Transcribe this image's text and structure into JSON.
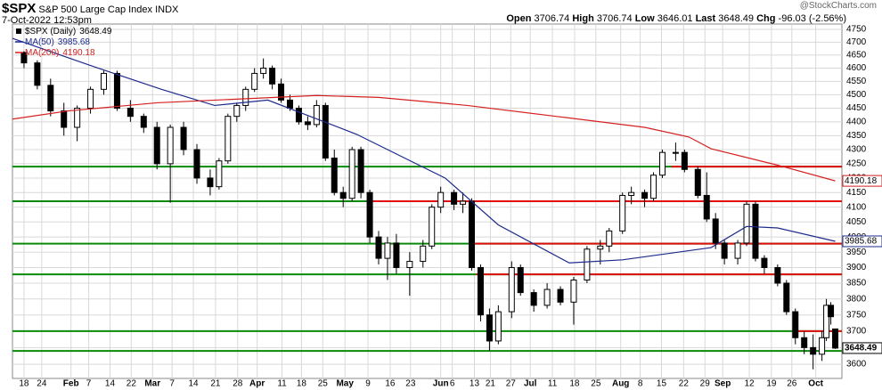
{
  "header": {
    "ticker": "$SPX",
    "name": "S&P 500 Large Cap Index",
    "exchange": "INDX",
    "date": "7-Oct-2022 12:53pm",
    "watermark": "@StockCharts.com",
    "stats": [
      {
        "label": "Open",
        "value": 3706.74
      },
      {
        "label": "High",
        "value": 3706.74
      },
      {
        "label": "Low",
        "value": 3646.01
      },
      {
        "label": "Last",
        "value": 3648.49
      },
      {
        "label": "Chg",
        "value": -96.03
      }
    ],
    "chg_pct": "(-2.56%)"
  },
  "chart_data": {
    "type": "candlestick",
    "log_scale": true,
    "grid": true,
    "name": "$SPX (Daily)",
    "last": 3648.49,
    "x": [
      0,
      3,
      6,
      9,
      12,
      15,
      18,
      21,
      24,
      27,
      30,
      33,
      36,
      39,
      42,
      44,
      46,
      48,
      50,
      52,
      54,
      56,
      58,
      60,
      62,
      64,
      66,
      68,
      70,
      72,
      74,
      76,
      78,
      80,
      82,
      84,
      87,
      90,
      92,
      94,
      97,
      99,
      101,
      103,
      105,
      107,
      110,
      112,
      115,
      118,
      121,
      124,
      127,
      130,
      132,
      135,
      137,
      140,
      142,
      144,
      147,
      149,
      152,
      154,
      156,
      158,
      161,
      163,
      165,
      167,
      170,
      172,
      174,
      176,
      178,
      180,
      181,
      182,
      183
    ],
    "open": [
      4660,
      4620,
      4535,
      4440,
      4380,
      4450,
      4520,
      4580,
      4450,
      4420,
      4380,
      4250,
      4380,
      4300,
      4200,
      4170,
      4260,
      4420,
      4460,
      4520,
      4580,
      4600,
      4540,
      4480,
      4450,
      4400,
      4390,
      4460,
      4270,
      4150,
      4130,
      4300,
      4150,
      4000,
      3930,
      3980,
      3900,
      3920,
      3970,
      4100,
      4150,
      4110,
      4120,
      3900,
      3750,
      3670,
      3760,
      3900,
      3820,
      3780,
      3830,
      3790,
      3860,
      3960,
      3970,
      4020,
      4140,
      4150,
      4130,
      4210,
      4290,
      4290,
      4230,
      4140,
      4060,
      3980,
      3930,
      3980,
      4110,
      3930,
      3900,
      3850,
      3760,
      3680,
      3650,
      3630,
      3680,
      3780,
      3706.74
    ],
    "high": [
      4665,
      4630,
      4560,
      4470,
      4460,
      4530,
      4590,
      4590,
      4480,
      4430,
      4400,
      4390,
      4400,
      4320,
      4230,
      4270,
      4430,
      4470,
      4530,
      4600,
      4637,
      4610,
      4560,
      4500,
      4460,
      4420,
      4480,
      4470,
      4300,
      4170,
      4310,
      4310,
      4160,
      4020,
      4000,
      4010,
      3950,
      3990,
      4110,
      4170,
      4160,
      4150,
      4130,
      3910,
      3770,
      3780,
      3920,
      3910,
      3830,
      3850,
      3840,
      3870,
      3970,
      3990,
      4030,
      4150,
      4170,
      4160,
      4220,
      4300,
      4325,
      4300,
      4240,
      4220,
      4080,
      3990,
      3990,
      4120,
      4120,
      3940,
      3910,
      3860,
      3770,
      3700,
      3690,
      3700,
      3800,
      3790,
      3706.74
    ],
    "low": [
      4600,
      4520,
      4420,
      4350,
      4330,
      4430,
      4500,
      4440,
      4400,
      4360,
      4230,
      4115,
      4280,
      4180,
      4140,
      4160,
      4250,
      4400,
      4440,
      4510,
      4560,
      4520,
      4470,
      4440,
      4390,
      4370,
      4380,
      4260,
      4140,
      4100,
      4120,
      4130,
      3980,
      3910,
      3860,
      3880,
      3810,
      3900,
      3960,
      4080,
      4090,
      4080,
      3890,
      3730,
      3640,
      3660,
      3740,
      3810,
      3760,
      3770,
      3780,
      3720,
      3850,
      3910,
      3950,
      4010,
      4110,
      4100,
      4120,
      4200,
      4260,
      4220,
      4130,
      4050,
      3960,
      3910,
      3910,
      3970,
      3920,
      3880,
      3840,
      3750,
      3660,
      3630,
      3585,
      3610,
      3670,
      3720,
      3646.01
    ],
    "close": [
      4620,
      4535,
      4440,
      4380,
      4450,
      4520,
      4580,
      4450,
      4420,
      4380,
      4250,
      4380,
      4300,
      4200,
      4170,
      4260,
      4420,
      4460,
      4520,
      4580,
      4600,
      4540,
      4480,
      4450,
      4400,
      4390,
      4460,
      4270,
      4150,
      4130,
      4300,
      4150,
      4000,
      3930,
      3980,
      3900,
      3920,
      3970,
      4100,
      4150,
      4110,
      4120,
      3900,
      3750,
      3670,
      3760,
      3900,
      3820,
      3780,
      3830,
      3790,
      3860,
      3960,
      3970,
      4020,
      4140,
      4150,
      4130,
      4210,
      4290,
      4290,
      4230,
      4140,
      4060,
      3980,
      3930,
      3980,
      4110,
      3930,
      3900,
      3850,
      3760,
      3680,
      3650,
      3630,
      3680,
      3780,
      3744.52,
      3648.49
    ],
    "series": [
      {
        "name": "MA(50)",
        "color": "#1c2a8c",
        "last": 3985.68,
        "x": [
          -2.6,
          15,
          31,
          43,
          55,
          75,
          95,
          107,
          123,
          135,
          155,
          163,
          170,
          183
        ],
        "values": [
          4715,
          4610,
          4520,
          4460,
          4480,
          4355,
          4200,
          4040,
          3915,
          3925,
          3965,
          4035,
          4030,
          3985.68
        ]
      },
      {
        "name": "MA(200)",
        "color": "#d42020",
        "last": 4190.18,
        "x": [
          -2.6,
          10,
          30,
          50,
          66,
          80,
          100,
          120,
          140,
          150,
          155,
          170,
          183
        ],
        "values": [
          4410,
          4440,
          4470,
          4485,
          4497,
          4490,
          4460,
          4420,
          4380,
          4345,
          4303,
          4245,
          4190.18
        ]
      }
    ],
    "levels": [
      {
        "value": 4240,
        "color": "#0a8a0a"
      },
      {
        "value": 4120,
        "color": "#0a8a0a"
      },
      {
        "value": 3978,
        "color": "#0a8a0a"
      },
      {
        "value": 3878,
        "color": "#0a8a0a"
      },
      {
        "value": 3700,
        "color": "#0a8a0a"
      },
      {
        "value": 3640,
        "color": "#0a8a0a"
      },
      {
        "value": 4240,
        "color": "#e01010",
        "from": 146
      },
      {
        "value": 4120,
        "color": "#e01010",
        "from": 78
      },
      {
        "value": 3978,
        "color": "#e01010",
        "from": 101
      },
      {
        "value": 3878,
        "color": "#e01010",
        "from": 102
      },
      {
        "value": 3700,
        "color": "#e01010",
        "from": 174
      }
    ],
    "xlim": [
      -2.6,
      184.5
    ],
    "ylim": [
      3558,
      4771
    ],
    "yticks": [
      3600,
      3650,
      3700,
      3750,
      3800,
      3850,
      3900,
      3950,
      4000,
      4050,
      4100,
      4150,
      4200,
      4250,
      4300,
      4350,
      4400,
      4450,
      4500,
      4550,
      4600,
      4650,
      4700,
      4750
    ],
    "xticks": [
      {
        "value": 0,
        "label": "18"
      },
      {
        "value": 4,
        "label": "24"
      },
      {
        "value": 10.6,
        "label": "Feb"
      },
      {
        "value": 14.6,
        "label": "7"
      },
      {
        "value": 19.4,
        "label": "14"
      },
      {
        "value": 24.2,
        "label": "22"
      },
      {
        "value": 29,
        "label": "Mar"
      },
      {
        "value": 33.4,
        "label": "7"
      },
      {
        "value": 38.2,
        "label": "14"
      },
      {
        "value": 43.2,
        "label": "21"
      },
      {
        "value": 48.2,
        "label": "28"
      },
      {
        "value": 52.6,
        "label": "Apr"
      },
      {
        "value": 58.2,
        "label": "11"
      },
      {
        "value": 62.6,
        "label": "18"
      },
      {
        "value": 67.4,
        "label": "25"
      },
      {
        "value": 72.4,
        "label": "May"
      },
      {
        "value": 77.6,
        "label": "9"
      },
      {
        "value": 82.6,
        "label": "16"
      },
      {
        "value": 87.2,
        "label": "23"
      },
      {
        "value": 94,
        "label": "Jun"
      },
      {
        "value": 96.6,
        "label": "6"
      },
      {
        "value": 101.6,
        "label": "13"
      },
      {
        "value": 105.2,
        "label": "21"
      },
      {
        "value": 109.8,
        "label": "27"
      },
      {
        "value": 114.2,
        "label": "Jul"
      },
      {
        "value": 119.2,
        "label": "11"
      },
      {
        "value": 124.2,
        "label": "18"
      },
      {
        "value": 129,
        "label": "25"
      },
      {
        "value": 134.6,
        "label": "Aug"
      },
      {
        "value": 139,
        "label": "8"
      },
      {
        "value": 143.8,
        "label": "15"
      },
      {
        "value": 148.8,
        "label": "22"
      },
      {
        "value": 153.6,
        "label": "29"
      },
      {
        "value": 157.6,
        "label": "Sep"
      },
      {
        "value": 163.6,
        "label": "12"
      },
      {
        "value": 168.6,
        "label": "19"
      },
      {
        "value": 173.2,
        "label": "26"
      },
      {
        "value": 178.6,
        "label": "Oct"
      }
    ]
  }
}
